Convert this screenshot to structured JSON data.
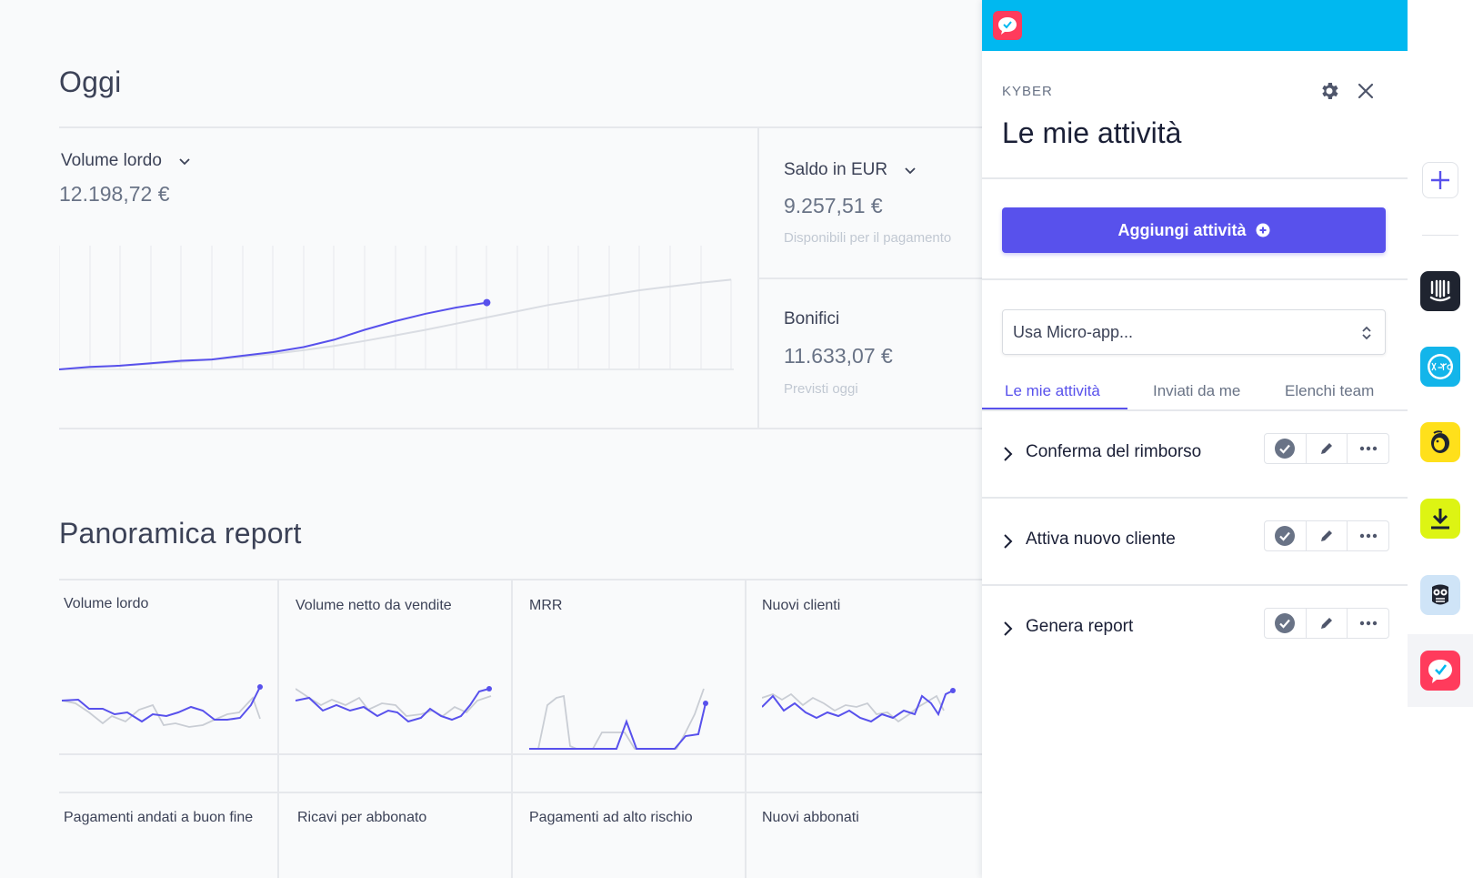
{
  "dashboard": {
    "today_title": "Oggi",
    "gross_volume": {
      "label": "Volume lordo",
      "value": "12.198,72 €"
    },
    "balance": {
      "label": "Saldo in EUR",
      "value": "9.257,51 €",
      "sub": "Disponibili per il pagamento"
    },
    "transfers": {
      "label": "Bonifici",
      "value": "11.633,07 €",
      "sub": "Previsti oggi"
    },
    "reports_title": "Panoramica report",
    "reports": [
      {
        "label": "Volume lordo"
      },
      {
        "label": "Volume netto da vendite"
      },
      {
        "label": "MRR"
      },
      {
        "label": "Nuovi clienti"
      },
      {
        "label": "Pagamenti andati a buon fine"
      },
      {
        "label": "Ricavi per abbonato"
      },
      {
        "label": "Pagamenti ad alto rischio"
      },
      {
        "label": "Nuovi abbonati"
      }
    ]
  },
  "chart_data": {
    "type": "line",
    "series": [
      {
        "values": [
          0,
          2,
          3,
          5,
          7,
          8,
          11,
          14,
          18,
          24,
          32,
          39,
          45,
          50,
          54
        ]
      },
      {
        "values": [
          0,
          1.5,
          3,
          4.5,
          6,
          8,
          10,
          12.5,
          15.5,
          19,
          23,
          27.5,
          32,
          37,
          42,
          47,
          52,
          56,
          60,
          64,
          67,
          70,
          72.5
        ]
      }
    ],
    "ylim": [
      0,
      100
    ],
    "grid": true
  },
  "panel": {
    "brand": "KYBER",
    "title": "Le mie attività",
    "add_button": "Aggiungi attività",
    "micro_app_placeholder": "Usa Micro-app...",
    "tabs": [
      "Le mie attività",
      "Inviati da me",
      "Elenchi team"
    ],
    "tasks": [
      {
        "name": "Conferma del rimborso"
      },
      {
        "name": "Attiva nuovo cliente"
      },
      {
        "name": "Genera report"
      }
    ]
  },
  "rail": {
    "apps": [
      "intercom-icon",
      "xero-icon",
      "mailchimp-icon",
      "download-icon",
      "owl-icon",
      "kyber-icon"
    ]
  },
  "colors": {
    "accent": "#5851ec",
    "topbar": "#00b8f0",
    "kyber": "#ff3b5c"
  }
}
